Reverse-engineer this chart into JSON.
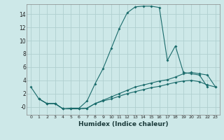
{
  "background_color": "#cde8e8",
  "grid_color": "#b0d0d0",
  "line_color": "#1a6b6b",
  "xlabel": "Humidex (Indice chaleur)",
  "xlim": [
    -0.5,
    23.5
  ],
  "ylim": [
    -1.2,
    15.5
  ],
  "yticks": [
    0,
    2,
    4,
    6,
    8,
    10,
    12,
    14
  ],
  "ytick_labels": [
    "-0",
    "2",
    "4",
    "6",
    "8",
    "10",
    "12",
    "14"
  ],
  "xticks": [
    0,
    1,
    2,
    3,
    4,
    5,
    6,
    7,
    8,
    9,
    10,
    11,
    12,
    13,
    14,
    15,
    16,
    17,
    18,
    19,
    20,
    21,
    22,
    23
  ],
  "series1_x": [
    0,
    1,
    2,
    3,
    4,
    5,
    6,
    7,
    8,
    9,
    10,
    11,
    12,
    13,
    14,
    15,
    16,
    17,
    18,
    19,
    20,
    21,
    22
  ],
  "series1_y": [
    3.0,
    1.2,
    0.5,
    0.5,
    -0.3,
    -0.2,
    -0.2,
    0.9,
    3.5,
    5.8,
    8.8,
    11.8,
    14.2,
    15.1,
    15.2,
    15.2,
    15.0,
    7.0,
    9.2,
    5.2,
    5.0,
    4.8,
    3.0
  ],
  "series2_x": [
    1,
    2,
    3,
    4,
    5,
    6,
    7,
    8,
    9,
    10,
    11,
    12,
    13,
    14,
    15,
    16,
    17,
    18,
    19,
    20,
    21,
    22,
    23
  ],
  "series2_y": [
    1.2,
    0.5,
    0.5,
    -0.3,
    -0.3,
    -0.3,
    -0.2,
    0.5,
    1.0,
    1.5,
    2.0,
    2.5,
    3.0,
    3.3,
    3.6,
    3.9,
    4.1,
    4.5,
    5.0,
    5.2,
    5.0,
    4.8,
    3.0
  ],
  "series3_x": [
    1,
    2,
    3,
    4,
    5,
    6,
    7,
    8,
    9,
    10,
    11,
    12,
    13,
    14,
    15,
    16,
    17,
    18,
    19,
    20,
    21,
    22,
    23
  ],
  "series3_y": [
    1.2,
    0.5,
    0.5,
    -0.3,
    -0.3,
    -0.3,
    -0.2,
    0.5,
    0.9,
    1.2,
    1.6,
    2.0,
    2.3,
    2.6,
    2.9,
    3.1,
    3.4,
    3.7,
    3.9,
    4.0,
    3.8,
    3.3,
    3.0
  ]
}
